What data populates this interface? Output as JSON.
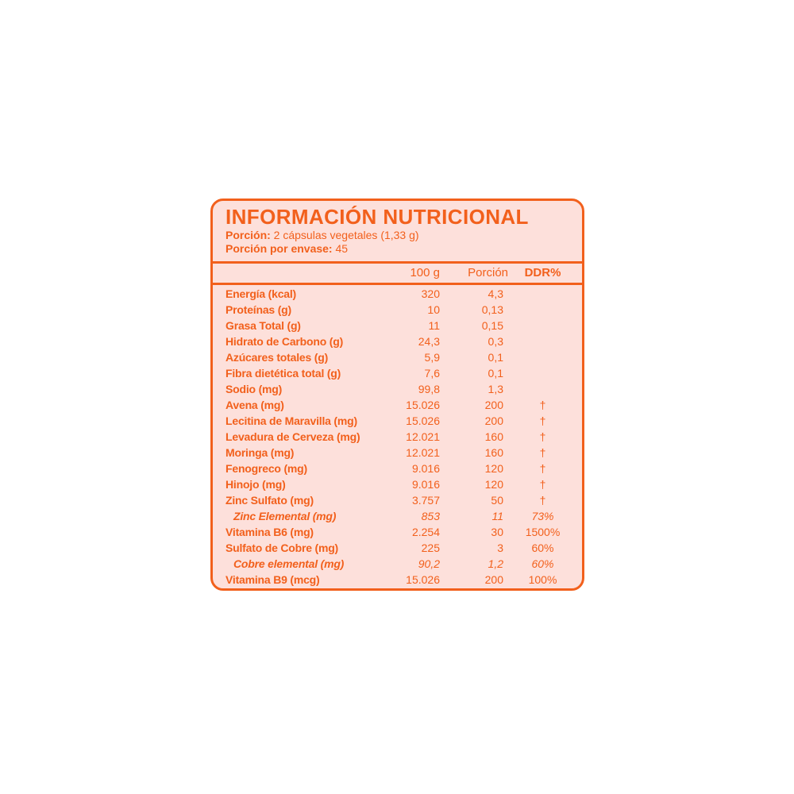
{
  "colors": {
    "accent_orange": "#F2601C",
    "panel_pink": "#FDE0DB",
    "page_background": "#FFFFFF"
  },
  "panel": {
    "title": "INFORMACIÓN NUTRICIONAL",
    "serving": {
      "label": "Porción:",
      "value": "2 cápsulas vegetales (1,33 g)"
    },
    "servings_per_container": {
      "label": "Porción por envase:",
      "value": "45"
    }
  },
  "table": {
    "columns": {
      "per100": "100 g",
      "portion": "Porción",
      "ddr": "DDR%"
    },
    "rows": [
      {
        "name": "Energía (kcal)",
        "per100": "320",
        "portion": "4,3",
        "ddr": "",
        "italic": false
      },
      {
        "name": "Proteínas (g)",
        "per100": "10",
        "portion": "0,13",
        "ddr": "",
        "italic": false
      },
      {
        "name": "Grasa Total (g)",
        "per100": "11",
        "portion": "0,15",
        "ddr": "",
        "italic": false
      },
      {
        "name": "Hidrato de Carbono (g)",
        "per100": "24,3",
        "portion": "0,3",
        "ddr": "",
        "italic": false
      },
      {
        "name": "Azúcares totales (g)",
        "per100": "5,9",
        "portion": "0,1",
        "ddr": "",
        "italic": false
      },
      {
        "name": "Fibra dietética total (g)",
        "per100": "7,6",
        "portion": "0,1",
        "ddr": "",
        "italic": false
      },
      {
        "name": "Sodio (mg)",
        "per100": "99,8",
        "portion": "1,3",
        "ddr": "",
        "italic": false
      },
      {
        "name": "Avena (mg)",
        "per100": "15.026",
        "portion": "200",
        "ddr": "†",
        "italic": false
      },
      {
        "name": "Lecitina de Maravilla (mg)",
        "per100": "15.026",
        "portion": "200",
        "ddr": "†",
        "italic": false
      },
      {
        "name": "Levadura de Cerveza (mg)",
        "per100": "12.021",
        "portion": "160",
        "ddr": "†",
        "italic": false
      },
      {
        "name": "Moringa (mg)",
        "per100": "12.021",
        "portion": "160",
        "ddr": "†",
        "italic": false
      },
      {
        "name": "Fenogreco (mg)",
        "per100": "9.016",
        "portion": "120",
        "ddr": "†",
        "italic": false
      },
      {
        "name": "Hinojo (mg)",
        "per100": "9.016",
        "portion": "120",
        "ddr": "†",
        "italic": false
      },
      {
        "name": "Zinc Sulfato (mg)",
        "per100": "3.757",
        "portion": "50",
        "ddr": "†",
        "italic": false
      },
      {
        "name": "Zinc Elemental (mg)",
        "per100": "853",
        "portion": "11",
        "ddr": "73%",
        "italic": true
      },
      {
        "name": "Vitamina B6 (mg)",
        "per100": "2.254",
        "portion": "30",
        "ddr": "1500%",
        "italic": false
      },
      {
        "name": "Sulfato de Cobre (mg)",
        "per100": "225",
        "portion": "3",
        "ddr": "60%",
        "italic": false
      },
      {
        "name": "Cobre elemental (mg)",
        "per100": "90,2",
        "portion": "1,2",
        "ddr": "60%",
        "italic": true
      },
      {
        "name": "Vitamina B9 (mcg)",
        "per100": "15.026",
        "portion": "200",
        "ddr": "100%",
        "italic": false
      }
    ]
  }
}
